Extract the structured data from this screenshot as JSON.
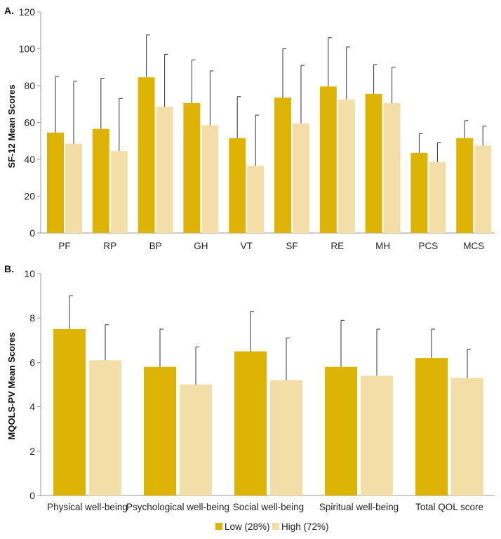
{
  "colors": {
    "low": "#DDB405",
    "high": "#F2DEA6",
    "axis": "#999999",
    "error": "#333333"
  },
  "legend": {
    "low_label": "Low (28%)",
    "high_label": "High (72%)"
  },
  "chart_data": [
    {
      "type": "bar",
      "panel_label": "A.",
      "ylabel": "SF-12 Mean Scores",
      "ylim": [
        0,
        120
      ],
      "yticks": [
        0,
        20,
        40,
        60,
        80,
        100,
        120
      ],
      "categories": [
        "PF",
        "RP",
        "BP",
        "GH",
        "VT",
        "SF",
        "RE",
        "MH",
        "PCS",
        "MCS"
      ],
      "series": [
        {
          "name": "Low (28%)",
          "values": [
            54.5,
            56.5,
            84.5,
            70.5,
            51.5,
            73.5,
            79.5,
            75.5,
            43.5,
            51.5
          ],
          "error_upper": [
            85,
            84,
            107.5,
            94,
            74,
            100,
            106,
            91.5,
            54,
            61
          ]
        },
        {
          "name": "High (72%)",
          "values": [
            48.5,
            44.5,
            68.5,
            58.5,
            36.5,
            59.5,
            72.5,
            70.5,
            38.5,
            47.5
          ],
          "error_upper": [
            82.5,
            73,
            97,
            88,
            64,
            91,
            101,
            90,
            49,
            58
          ]
        }
      ]
    },
    {
      "type": "bar",
      "panel_label": "B.",
      "ylabel": "MQOLS-PV Mean Scores",
      "ylim": [
        0,
        10
      ],
      "yticks": [
        0,
        2,
        4,
        6,
        8,
        10
      ],
      "categories": [
        "Physical well-being",
        "Psychological well-being",
        "Social well-being",
        "Spiritual well-being",
        "Total QOL score"
      ],
      "series": [
        {
          "name": "Low (28%)",
          "values": [
            7.5,
            5.8,
            6.5,
            5.8,
            6.2
          ],
          "error_upper": [
            9.0,
            7.5,
            8.3,
            7.9,
            7.5
          ]
        },
        {
          "name": "High (72%)",
          "values": [
            6.1,
            5.0,
            5.2,
            5.4,
            5.3
          ],
          "error_upper": [
            7.7,
            6.7,
            7.1,
            7.5,
            6.6
          ]
        }
      ]
    }
  ]
}
